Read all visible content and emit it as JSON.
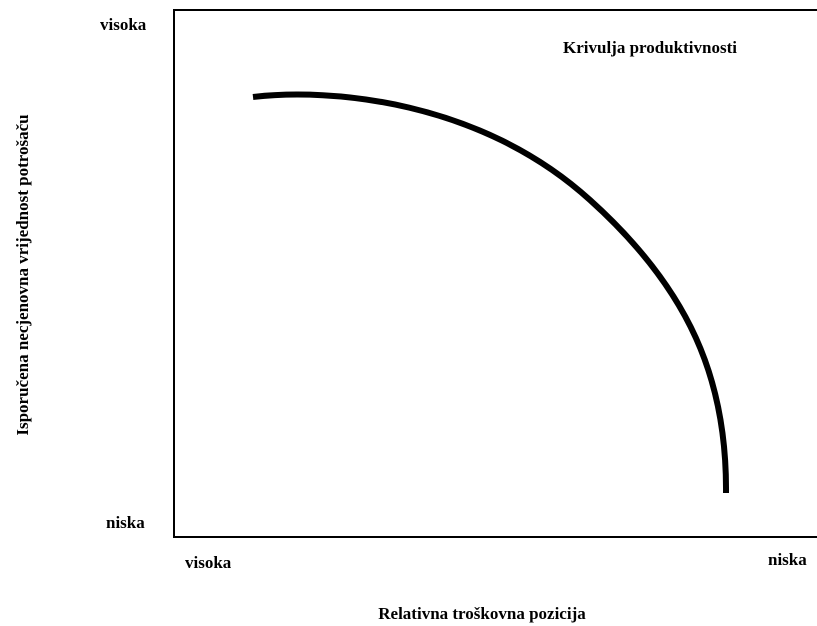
{
  "title": "Krivulja produktivnosti",
  "y_axis": {
    "label": "Isporučena necjenovna vrijednost potrošaču",
    "high": "visoka",
    "low": "niska"
  },
  "x_axis": {
    "label": "Relativna troškovna pozicija",
    "left": "visoka",
    "right": "niska"
  }
}
